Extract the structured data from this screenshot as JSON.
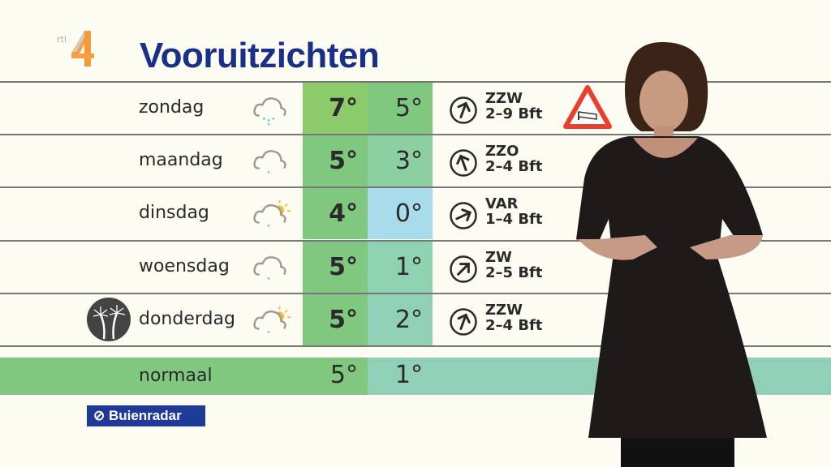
{
  "title": "Vooruitzichten",
  "logo": "rtl 4",
  "days": [
    {
      "day": "zondag",
      "icon": "cloud-snow-icon",
      "max": "7°",
      "min": "5°",
      "max_color": "#8ccb6a",
      "min_color": "#80c880",
      "dir": "ZZW",
      "force": "2–9 Bft",
      "arrow_deg": 20
    },
    {
      "day": "maandag",
      "icon": "cloud-drizzle-icon",
      "max": "5°",
      "min": "3°",
      "max_color": "#80c880",
      "min_color": "#8ccfa0",
      "dir": "ZZO",
      "force": "2–4 Bft",
      "arrow_deg": -20
    },
    {
      "day": "dinsdag",
      "icon": "cloud-sun-icon",
      "max": "4°",
      "min": "0°",
      "max_color": "#80c880",
      "min_color": "#a8dcea",
      "dir": "VAR",
      "force": "1–4 Bft",
      "arrow_deg": 65
    },
    {
      "day": "woensdag",
      "icon": "cloud-drizzle-icon",
      "max": "5°",
      "min": "1°",
      "max_color": "#80c880",
      "min_color": "#8fd2b2",
      "dir": "ZW",
      "force": "2–5 Bft",
      "arrow_deg": 45
    },
    {
      "day": "donderdag",
      "icon": "cloud-sun-icon",
      "max": "5°",
      "min": "2°",
      "max_color": "#80c880",
      "min_color": "#8fd0b6",
      "dir": "ZZW",
      "force": "2–4 Bft",
      "arrow_deg": 20
    }
  ],
  "normal": {
    "label": "normaal",
    "max": "5°",
    "min": "1°"
  },
  "brand": "Buienradar",
  "colors": {
    "title": "#1a3088",
    "warning": "#e8402a",
    "brand_bg": "#1e3a96"
  }
}
